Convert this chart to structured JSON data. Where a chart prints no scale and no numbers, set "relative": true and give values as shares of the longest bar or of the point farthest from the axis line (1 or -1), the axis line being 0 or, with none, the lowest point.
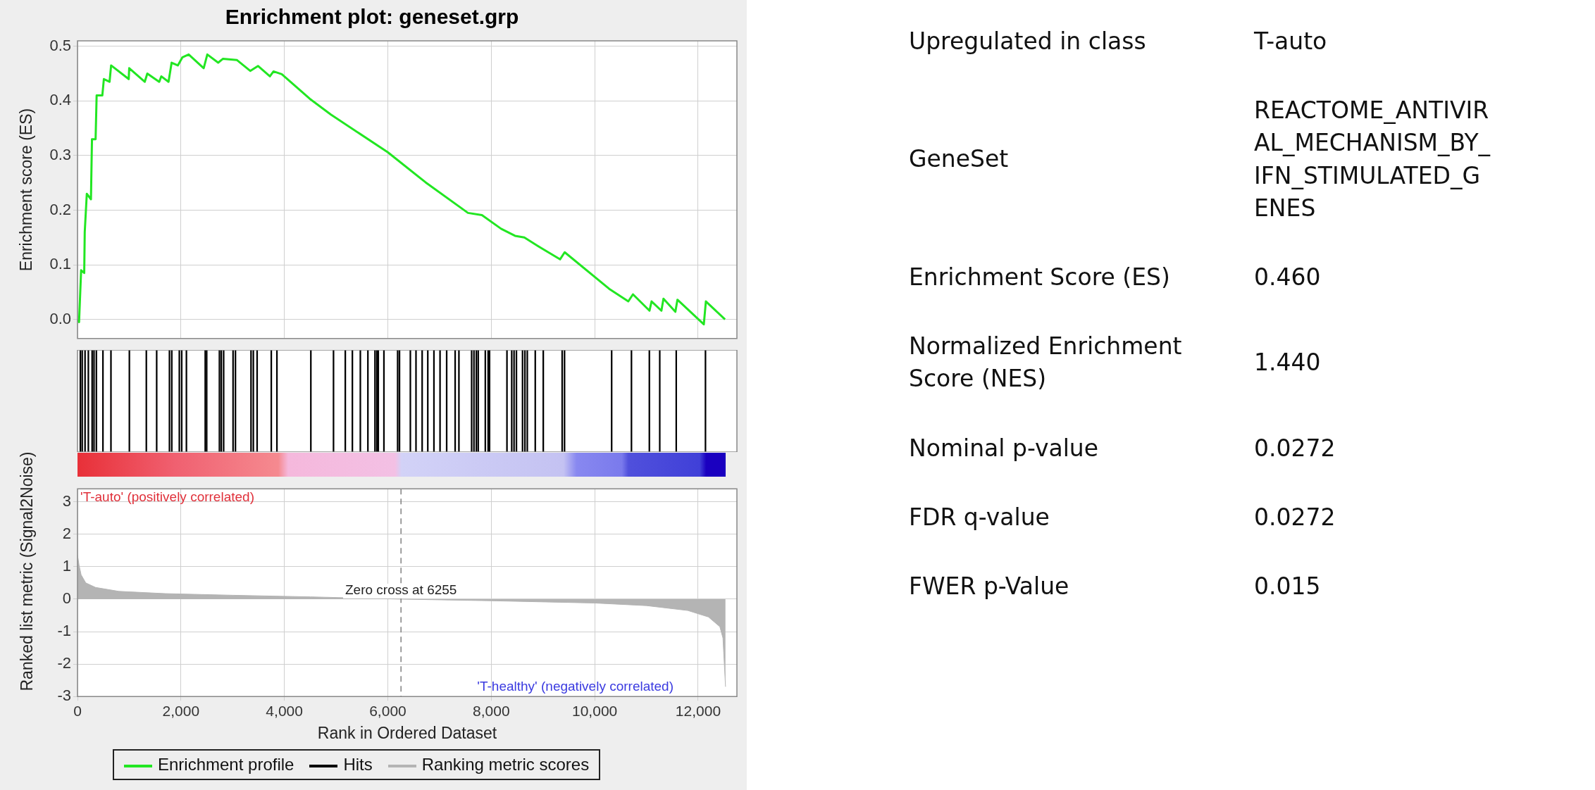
{
  "chart_data": [
    {
      "type": "line",
      "title": "Enrichment plot: geneset.grp",
      "ylabel": "Enrichment score (ES)",
      "xlim": [
        0,
        12750
      ],
      "xticks": [
        0,
        2000,
        4000,
        6000,
        8000,
        10000,
        12000
      ],
      "ylim": [
        -0.035,
        0.51
      ],
      "yticks": [
        {
          "value": 0,
          "label": "0.0"
        },
        0.1,
        0.2,
        0.3,
        0.4,
        0.5
      ],
      "grid": true,
      "legend": "bottom",
      "tick_labels": "y",
      "series": [
        {
          "name": "Enrichment profile",
          "color": "#22e622",
          "x": [
            0,
            30,
            70,
            130,
            140,
            180,
            260,
            280,
            350,
            370,
            480,
            510,
            620,
            650,
            990,
            1000,
            1300,
            1350,
            1580,
            1620,
            1760,
            1820,
            1940,
            2030,
            2150,
            2440,
            2510,
            2720,
            2810,
            3080,
            3340,
            3490,
            3720,
            3790,
            3950,
            4490,
            4900,
            6000,
            6730,
            7550,
            7820,
            8190,
            8460,
            8640,
            8960,
            9330,
            9420,
            10280,
            10650,
            10740,
            11060,
            11100,
            11290,
            11330,
            11560,
            11600,
            12110,
            12150,
            12520
          ],
          "values": [
            0,
            -0.005,
            0.09,
            0.085,
            0.16,
            0.23,
            0.22,
            0.33,
            0.33,
            0.41,
            0.41,
            0.44,
            0.435,
            0.465,
            0.44,
            0.46,
            0.435,
            0.45,
            0.435,
            0.445,
            0.435,
            0.47,
            0.465,
            0.48,
            0.485,
            0.46,
            0.485,
            0.47,
            0.477,
            0.475,
            0.455,
            0.464,
            0.445,
            0.454,
            0.449,
            0.404,
            0.375,
            0.306,
            0.251,
            0.195,
            0.191,
            0.166,
            0.153,
            0.15,
            0.131,
            0.11,
            0.123,
            0.056,
            0.033,
            0.046,
            0.016,
            0.033,
            0.016,
            0.038,
            0.014,
            0.036,
            -0.009,
            0.033,
            0
          ]
        }
      ]
    },
    {
      "type": "bar",
      "relative": true,
      "xlim": [
        0,
        12750
      ],
      "xticks": [
        0,
        2000,
        4000,
        6000,
        8000,
        10000,
        12000
      ],
      "tick_labels": false,
      "legend": "bottom",
      "series": [
        {
          "name": "Hits",
          "color": "#000000",
          "x": [
            55,
            91,
            146,
            210,
            283,
            319,
            365,
            492,
            647,
            1003,
            1331,
            1531,
            1778,
            1823,
            1969,
            2015,
            2106,
            2470,
            2498,
            2744,
            2780,
            2826,
            3008,
            3054,
            3355,
            3400,
            3473,
            3747,
            3856,
            4512,
            4950,
            5178,
            5315,
            5469,
            5615,
            5752,
            5788,
            5816,
            5925,
            6190,
            6226,
            6436,
            6545,
            6664,
            6773,
            6892,
            7010,
            7138,
            7302,
            7375,
            7621,
            7666,
            7712,
            7748,
            7885,
            7940,
            7967,
            8304,
            8396,
            8441,
            8487,
            8605,
            8651,
            8697,
            8851,
            9006,
            9371,
            9417,
            10328,
            10711,
            11057,
            11258,
            11577,
            12142
          ],
          "values": [
            1,
            1,
            1,
            1,
            1,
            1,
            1,
            1,
            1,
            1,
            1,
            1,
            1,
            1,
            1,
            1,
            1,
            1,
            1,
            1,
            1,
            1,
            1,
            1,
            1,
            1,
            1,
            1,
            1,
            1,
            1,
            1,
            1,
            1,
            1,
            1,
            1,
            1,
            1,
            1,
            1,
            1,
            1,
            1,
            1,
            1,
            1,
            1,
            1,
            1,
            1,
            1,
            1,
            1,
            1,
            1,
            1,
            1,
            1,
            1,
            1,
            1,
            1,
            1,
            1,
            1,
            1,
            1,
            1,
            1,
            1,
            1,
            1,
            1
          ]
        }
      ]
    },
    {
      "type": "area",
      "xlabel": "Rank in Ordered Dataset",
      "ylabel": "Ranked list metric (Signal2Noise)",
      "xlim": [
        0,
        12750
      ],
      "xticks": [
        0,
        {
          "value": 2000,
          "label": "2,000"
        },
        {
          "value": 4000,
          "label": "4,000"
        },
        {
          "value": 6000,
          "label": "6,000"
        },
        {
          "value": 8000,
          "label": "8,000"
        },
        {
          "value": 10000,
          "label": "10,000"
        },
        {
          "value": 12000,
          "label": "12,000"
        }
      ],
      "ylim": [
        -3,
        3.4
      ],
      "yticks": [
        -3,
        -2,
        -1,
        0,
        1,
        2,
        3
      ],
      "grid": true,
      "legend": "bottom",
      "series": [
        {
          "name": "Ranking metric scores",
          "color": "#b4b4b4",
          "x": [
            0,
            30,
            70,
            160,
            350,
            800,
            1700,
            3000,
            4500,
            6255,
            8000,
            10000,
            11000,
            11800,
            12200,
            12420,
            12480,
            12530
          ],
          "values": [
            1.36,
            1.05,
            0.75,
            0.5,
            0.36,
            0.24,
            0.17,
            0.12,
            0.07,
            0,
            -0.05,
            -0.12,
            -0.2,
            -0.35,
            -0.55,
            -0.85,
            -1.2,
            -2.7
          ]
        }
      ],
      "ref_lines": [
        {
          "axis": "x",
          "value": 6255,
          "line_style": "dashed",
          "color": "#808080"
        }
      ],
      "annotations": [
        "'T-auto' (positively correlated)",
        "'T-healthy' (negatively correlated)",
        "Zero cross at 6255"
      ]
    },
    {
      "type": "other",
      "annotations": [
        "Upregulated in class",
        "T-auto",
        "GeneSet",
        "REACTOME_ANTIVIRAL_MECHANISM_BY_IFN_STIMULATED_GENES",
        "Enrichment Score (ES)",
        "0.460",
        "Normalized Enrichment Score (NES)",
        "1.440",
        "Nominal p-value",
        "0.0272",
        "FDR q-value",
        "0.0272",
        "FWER p-Value",
        "0.015"
      ]
    }
  ]
}
